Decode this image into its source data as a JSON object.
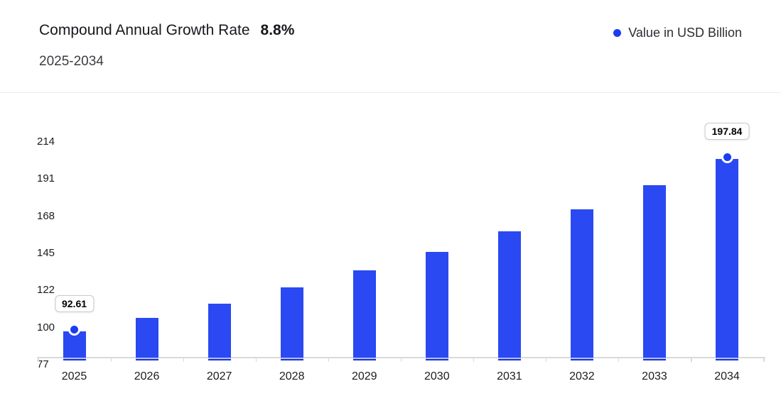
{
  "header": {
    "title": "Compound Annual Growth Rate",
    "cagr": "8.8%",
    "subtitle": "2025-2034"
  },
  "legend": {
    "label": "Value in USD Billion",
    "dot_color": "#1c3cf3"
  },
  "chart_data": {
    "type": "bar",
    "title": "Compound Annual Growth Rate 8.8%",
    "subtitle": "2025-2034",
    "categories": [
      "2025",
      "2026",
      "2027",
      "2028",
      "2029",
      "2030",
      "2031",
      "2032",
      "2033",
      "2034"
    ],
    "series": [
      {
        "name": "Value in USD Billion",
        "values": [
          92.61,
          100.76,
          109.63,
          119.27,
          129.77,
          141.19,
          153.62,
          167.13,
          181.84,
          197.84
        ]
      }
    ],
    "value_labels": [
      {
        "category": "2025",
        "text": "92.61"
      },
      {
        "category": "2034",
        "text": "197.84"
      }
    ],
    "y_ticks": [
      77,
      100,
      122,
      145,
      168,
      191,
      214
    ],
    "ylim": [
      77,
      214
    ],
    "xlabel": "",
    "ylabel": "",
    "grid": false,
    "legend_position": "top-right",
    "bar_color": "#2a49f2",
    "marker_color": "#1c3cf3",
    "cagr_percent": 8.8
  }
}
